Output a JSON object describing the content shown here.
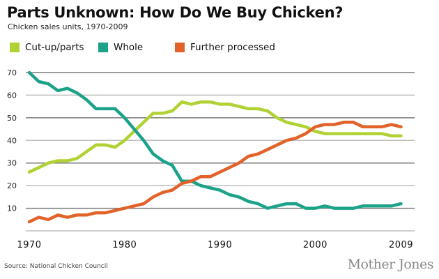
{
  "chart_data": {
    "type": "line",
    "title": "Parts Unknown: How Do We Buy Chicken?",
    "subtitle": "Chicken sales units, 1970-2009",
    "xlabel": "",
    "ylabel": "",
    "x": [
      1970,
      1971,
      1972,
      1973,
      1974,
      1975,
      1976,
      1977,
      1978,
      1979,
      1980,
      1981,
      1982,
      1983,
      1984,
      1985,
      1986,
      1987,
      1988,
      1989,
      1990,
      1991,
      1992,
      1993,
      1994,
      1995,
      1996,
      1997,
      1998,
      1999,
      2000,
      2001,
      2002,
      2003,
      2004,
      2005,
      2006,
      2007,
      2008,
      2009
    ],
    "xlim": [
      1970,
      2009
    ],
    "ylim": [
      0,
      70
    ],
    "yticks": [
      10,
      20,
      30,
      40,
      50,
      60,
      70
    ],
    "xtick_labels": [
      "1970",
      "1980",
      "1990",
      "2000",
      "2009"
    ],
    "xticks": [
      1970,
      1980,
      1990,
      2000,
      2009
    ],
    "grid": true,
    "legend_position": "top-left",
    "series": [
      {
        "name": "Cut-up/parts",
        "color": "#b1d235",
        "values": [
          26,
          28,
          30,
          31,
          31,
          32,
          35,
          38,
          38,
          37,
          40,
          44,
          48,
          52,
          52,
          53,
          57,
          56,
          57,
          57,
          56,
          56,
          55,
          54,
          54,
          53,
          50,
          48,
          47,
          46,
          44,
          43,
          43,
          43,
          43,
          43,
          43,
          43,
          42,
          42
        ]
      },
      {
        "name": "Whole",
        "color": "#1ba289",
        "values": [
          70,
          66,
          65,
          62,
          63,
          61,
          58,
          54,
          54,
          54,
          50,
          45,
          40,
          34,
          31,
          29,
          22,
          22,
          20,
          19,
          18,
          16,
          15,
          13,
          12,
          10,
          11,
          12,
          12,
          10,
          10,
          11,
          10,
          10,
          10,
          11,
          11,
          11,
          11,
          12
        ]
      },
      {
        "name": "Further processed",
        "color": "#e2632a",
        "values": [
          4,
          6,
          5,
          7,
          6,
          7,
          7,
          8,
          8,
          9,
          10,
          11,
          12,
          15,
          17,
          18,
          21,
          22,
          24,
          24,
          26,
          28,
          30,
          33,
          34,
          36,
          38,
          40,
          41,
          43,
          46,
          47,
          47,
          48,
          48,
          46,
          46,
          46,
          47,
          46
        ]
      }
    ]
  },
  "source": "Source: National Chicken Council",
  "brand": "Mother Jones"
}
